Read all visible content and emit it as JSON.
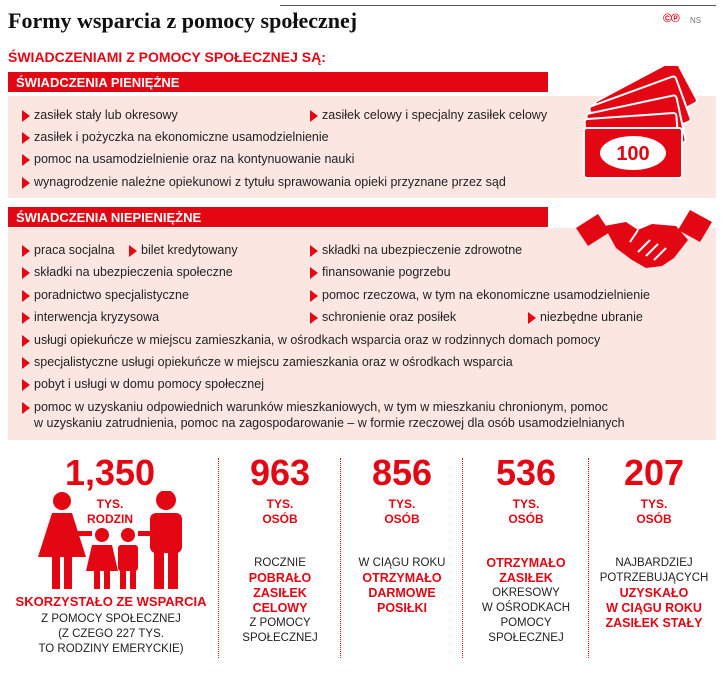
{
  "title": "Formy wsparcia z pomocy społecznej",
  "logo": {
    "mark": "©℗",
    "ns": "NS"
  },
  "subtitle": "ŚWIADCZENIAMI Z POMOCY SPOŁECZNEJ SĄ:",
  "money": {
    "heading": "ŚWIADCZENIA PIENIĘŻNE",
    "banknote_value": "100",
    "items": [
      "zasiłek stały lub okresowy",
      "zasiłek celowy i specjalny zasiłek celowy",
      "zasiłek i pożyczka na ekonomiczne usamodzielnienie",
      "pomoc na usamodzielnienie oraz na kontynuowanie nauki",
      "wynagrodzenie należne opiekunowi z tytułu sprawowania opieki przyznane przez sąd"
    ]
  },
  "nonmoney": {
    "heading": "ŚWIADCZENIA NIEPIENIĘŻNE",
    "items": [
      "praca socjalna",
      "bilet kredytowany",
      "składki na ubezpieczenie zdrowotne",
      "składki na ubezpieczenia społeczne",
      "finansowanie pogrzebu",
      "poradnictwo specjalistyczne",
      "pomoc rzeczowa, w tym na ekonomiczne usamodzielnienie",
      "interwencja kryzysowa",
      "schronienie oraz posiłek",
      "niezbędne ubranie",
      "usługi opiekuńcze w miejscu zamieszkania, w ośrodkach wsparcia oraz w rodzinnych domach pomocy",
      "specjalistyczne usługi opiekuńcze w miejscu zamieszkania oraz w ośrodkach wsparcia",
      "pobyt i usługi w domu pomocy społecznej",
      "pomoc w uzyskaniu odpowiednich warunków mieszkaniowych, w tym w mieszkaniu chronionym, pomoc",
      "w uzyskaniu zatrudnienia, pomoc na zagospodarowanie – w formie rzeczowej dla osób usamodzielnianych"
    ]
  },
  "stats": [
    {
      "value": "1,350",
      "unit1": "TYS.",
      "unit2": "RODZIN",
      "highlight": "SKORZYSTAŁO ZE WSPARCIA",
      "lines": [
        "Z POMOCY SPOŁECZNEJ",
        "(Z CZEGO 227 TYS.",
        "TO RODZINY EMERYCKIE)"
      ]
    },
    {
      "value": "963",
      "unit1": "TYS.",
      "unit2": "OSÓB",
      "pre": "ROCZNIE",
      "hl": [
        "POBRAŁO",
        "ZASIŁEK",
        "CELOWY"
      ],
      "post": [
        "Z POMOCY",
        "SPOŁECZNEJ"
      ]
    },
    {
      "value": "856",
      "unit1": "TYS.",
      "unit2": "OSÓB",
      "pre": "W CIĄGU ROKU",
      "hl": [
        "OTRZYMAŁO",
        "DARMOWE",
        "POSIŁKI"
      ],
      "post": []
    },
    {
      "value": "536",
      "unit1": "TYS.",
      "unit2": "OSÓB",
      "pre": "",
      "hl": [
        "OTRZYMAŁO",
        "ZASIŁEK"
      ],
      "post": [
        "OKRESOWY",
        "W OŚRODKACH",
        "POMOCY",
        "SPOŁECZNEJ"
      ]
    },
    {
      "value": "207",
      "unit1": "TYS.",
      "unit2": "OSÓB",
      "pre": "NAJBARDZIEJ",
      "pre2": "POTRZEBUJĄCYCH",
      "hl": [
        "UZYSKAŁO",
        "W CIĄGU ROKU",
        "ZASIŁEK STAŁY"
      ],
      "post": []
    }
  ],
  "colors": {
    "accent": "#e30613",
    "panel": "#fbe6e2"
  }
}
